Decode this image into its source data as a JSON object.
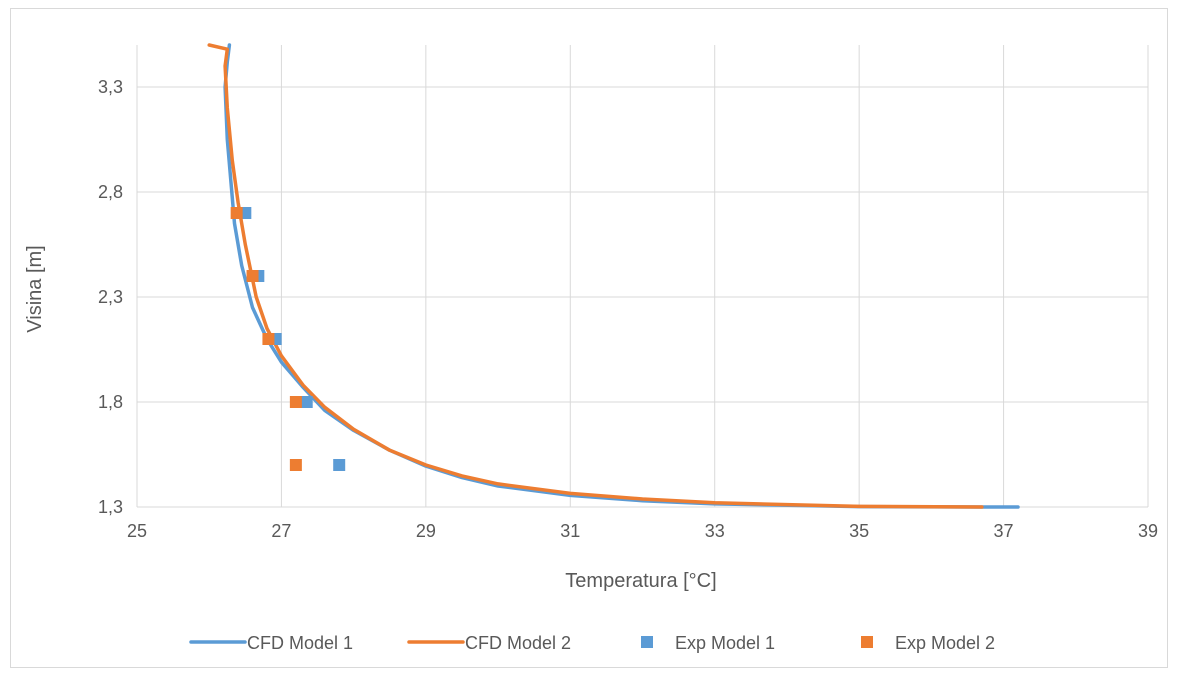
{
  "chart_data": {
    "type": "scatter",
    "title": "",
    "xlabel": "Temperatura [°C]",
    "ylabel": "Visina [m]",
    "xlim": [
      25,
      39
    ],
    "ylim": [
      1.3,
      3.5
    ],
    "xticks": [
      25,
      27,
      29,
      31,
      33,
      35,
      37,
      39
    ],
    "xtick_labels": [
      "25",
      "27",
      "29",
      "31",
      "33",
      "35",
      "37",
      "39"
    ],
    "yticks": [
      1.3,
      1.8,
      2.3,
      2.8,
      3.3
    ],
    "ytick_labels": [
      "1,3",
      "1,8",
      "2,3",
      "2,8",
      "3,3"
    ],
    "grid": true,
    "legend_position": "bottom",
    "series": [
      {
        "name": "CFD Model 1",
        "kind": "line",
        "color": "#5B9BD5",
        "points": [
          [
            37.2,
            1.3
          ],
          [
            36.7,
            1.3
          ],
          [
            35.0,
            1.302
          ],
          [
            33.0,
            1.315
          ],
          [
            32.0,
            1.33
          ],
          [
            31.0,
            1.355
          ],
          [
            30.0,
            1.4
          ],
          [
            29.5,
            1.44
          ],
          [
            29.0,
            1.495
          ],
          [
            28.5,
            1.57
          ],
          [
            28.0,
            1.665
          ],
          [
            27.6,
            1.76
          ],
          [
            27.3,
            1.87
          ],
          [
            27.0,
            1.99
          ],
          [
            26.8,
            2.1
          ],
          [
            26.6,
            2.25
          ],
          [
            26.45,
            2.45
          ],
          [
            26.35,
            2.65
          ],
          [
            26.3,
            2.85
          ],
          [
            26.25,
            3.05
          ],
          [
            26.22,
            3.3
          ],
          [
            26.25,
            3.42
          ],
          [
            26.28,
            3.5
          ]
        ]
      },
      {
        "name": "CFD Model 2",
        "kind": "line",
        "color": "#ED7D31",
        "points": [
          [
            36.7,
            1.3
          ],
          [
            35.0,
            1.303
          ],
          [
            33.0,
            1.32
          ],
          [
            32.0,
            1.338
          ],
          [
            31.0,
            1.365
          ],
          [
            30.0,
            1.41
          ],
          [
            29.5,
            1.448
          ],
          [
            29.0,
            1.5
          ],
          [
            28.5,
            1.57
          ],
          [
            28.0,
            1.67
          ],
          [
            27.6,
            1.775
          ],
          [
            27.3,
            1.88
          ],
          [
            27.0,
            2.02
          ],
          [
            26.8,
            2.15
          ],
          [
            26.65,
            2.3
          ],
          [
            26.5,
            2.55
          ],
          [
            26.4,
            2.75
          ],
          [
            26.32,
            2.95
          ],
          [
            26.25,
            3.2
          ],
          [
            26.22,
            3.4
          ],
          [
            26.25,
            3.48
          ],
          [
            26.0,
            3.5
          ]
        ]
      },
      {
        "name": "Exp Model 1",
        "kind": "scatter",
        "color": "#5B9BD5",
        "points": [
          [
            26.5,
            2.7
          ],
          [
            26.68,
            2.4
          ],
          [
            26.92,
            2.1
          ],
          [
            27.35,
            1.8
          ],
          [
            27.8,
            1.5
          ]
        ]
      },
      {
        "name": "Exp Model 2",
        "kind": "scatter",
        "color": "#ED7D31",
        "points": [
          [
            26.38,
            2.7
          ],
          [
            26.6,
            2.4
          ],
          [
            26.82,
            2.1
          ],
          [
            27.2,
            1.8
          ],
          [
            27.2,
            1.5
          ]
        ]
      }
    ]
  }
}
